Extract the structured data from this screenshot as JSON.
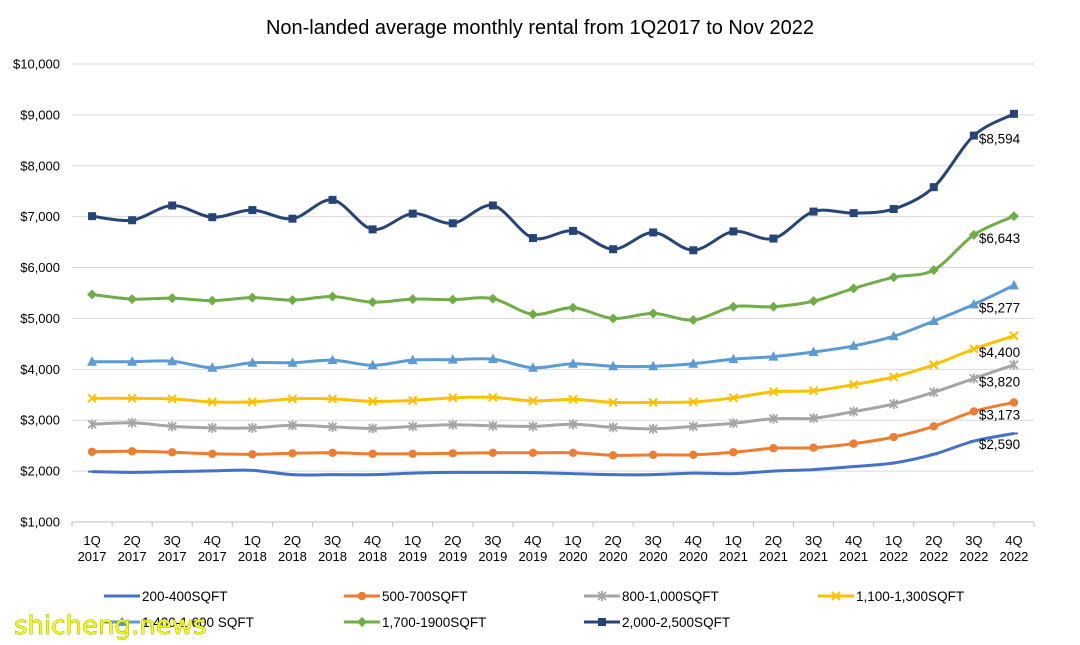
{
  "watermark": "shicheng.news",
  "chart_data": {
    "type": "line",
    "title": "Non-landed average monthly rental from 1Q2017 to Nov 2022",
    "xlabel": "",
    "ylabel": "",
    "ylim": [
      1000,
      10000
    ],
    "y_ticks": [
      "$1,000",
      "$2,000",
      "$3,000",
      "$4,000",
      "$5,000",
      "$6,000",
      "$7,000",
      "$8,000",
      "$9,000",
      "$10,000"
    ],
    "grid": true,
    "legend_position": "bottom",
    "categories": [
      [
        "1Q",
        "2017"
      ],
      [
        "2Q",
        "2017"
      ],
      [
        "3Q",
        "2017"
      ],
      [
        "4Q",
        "2017"
      ],
      [
        "1Q",
        "2018"
      ],
      [
        "2Q",
        "2018"
      ],
      [
        "3Q",
        "2018"
      ],
      [
        "4Q",
        "2018"
      ],
      [
        "1Q",
        "2019"
      ],
      [
        "2Q",
        "2019"
      ],
      [
        "3Q",
        "2019"
      ],
      [
        "4Q",
        "2019"
      ],
      [
        "1Q",
        "2020"
      ],
      [
        "2Q",
        "2020"
      ],
      [
        "3Q",
        "2020"
      ],
      [
        "4Q",
        "2020"
      ],
      [
        "1Q",
        "2021"
      ],
      [
        "2Q",
        "2021"
      ],
      [
        "3Q",
        "2021"
      ],
      [
        "4Q",
        "2021"
      ],
      [
        "1Q",
        "2022"
      ],
      [
        "2Q",
        "2022"
      ],
      [
        "3Q",
        "2022"
      ],
      [
        "4Q",
        "2022"
      ]
    ],
    "series": [
      {
        "name": "200-400SQFT",
        "color": "#4472c4",
        "marker": "dash",
        "values": [
          1990,
          1975,
          1990,
          2005,
          2015,
          1930,
          1930,
          1930,
          1960,
          1975,
          1975,
          1970,
          1950,
          1930,
          1930,
          1960,
          1950,
          2000,
          2030,
          2090,
          2160,
          2330,
          2590,
          2740
        ]
      },
      {
        "name": "500-700SQFT",
        "color": "#ed7d31",
        "marker": "circle",
        "values": [
          2380,
          2390,
          2370,
          2340,
          2330,
          2350,
          2360,
          2340,
          2340,
          2350,
          2360,
          2360,
          2360,
          2310,
          2320,
          2320,
          2370,
          2450,
          2460,
          2540,
          2670,
          2880,
          3173,
          3350
        ]
      },
      {
        "name": "800-1,000SQFT",
        "color": "#a5a5a5",
        "marker": "star",
        "values": [
          2920,
          2950,
          2880,
          2850,
          2850,
          2900,
          2870,
          2840,
          2880,
          2910,
          2890,
          2880,
          2920,
          2860,
          2830,
          2880,
          2940,
          3030,
          3040,
          3170,
          3320,
          3550,
          3820,
          4090
        ]
      },
      {
        "name": "1,100-1,300SQFT",
        "color": "#ffc000",
        "marker": "x",
        "values": [
          3430,
          3430,
          3420,
          3360,
          3360,
          3420,
          3420,
          3370,
          3390,
          3440,
          3450,
          3380,
          3410,
          3350,
          3350,
          3360,
          3440,
          3560,
          3580,
          3700,
          3850,
          4090,
          4400,
          4660
        ]
      },
      {
        "name": "1,400-1,600 SQFT",
        "color": "#5b9bd5",
        "marker": "triangle",
        "values": [
          4150,
          4150,
          4160,
          4030,
          4130,
          4130,
          4180,
          4080,
          4180,
          4190,
          4200,
          4030,
          4110,
          4060,
          4060,
          4110,
          4200,
          4250,
          4340,
          4460,
          4650,
          4950,
          5277,
          5650
        ]
      },
      {
        "name": "1,700-1900SQFT",
        "color": "#70ad47",
        "marker": "diamond",
        "values": [
          5470,
          5380,
          5400,
          5350,
          5410,
          5360,
          5430,
          5320,
          5380,
          5370,
          5390,
          5080,
          5210,
          5000,
          5100,
          4970,
          5230,
          5230,
          5340,
          5590,
          5810,
          5950,
          6643,
          7010
        ]
      },
      {
        "name": "2,000-2,500SQFT",
        "color": "#264478",
        "marker": "square",
        "values": [
          7010,
          6930,
          7220,
          6990,
          7130,
          6960,
          7330,
          6750,
          7060,
          6870,
          7220,
          6580,
          6720,
          6360,
          6690,
          6340,
          6710,
          6570,
          7100,
          7070,
          7150,
          7580,
          8594,
          9020
        ]
      }
    ],
    "data_labels": [
      {
        "series": "2,000-2,500SQFT",
        "index": 22,
        "text": "$8,594"
      },
      {
        "series": "1,700-1900SQFT",
        "index": 22,
        "text": "$6,643"
      },
      {
        "series": "1,400-1,600 SQFT",
        "index": 22,
        "text": "$5,277"
      },
      {
        "series": "1,100-1,300SQFT",
        "index": 22,
        "text": "$4,400"
      },
      {
        "series": "800-1,000SQFT",
        "index": 22,
        "text": "$3,820"
      },
      {
        "series": "500-700SQFT",
        "index": 22,
        "text": "$3,173"
      },
      {
        "series": "200-400SQFT",
        "index": 22,
        "text": "$2,590"
      }
    ]
  }
}
